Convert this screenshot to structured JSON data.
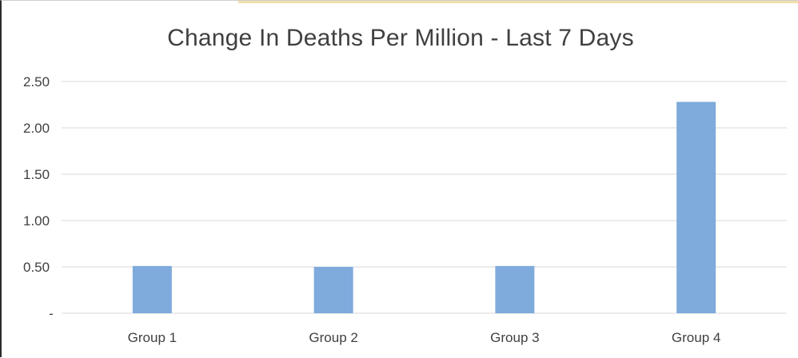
{
  "chart_data": {
    "type": "bar",
    "title": "Change In Deaths Per Million - Last 7 Days",
    "categories": [
      "Group 1",
      "Group 2",
      "Group 3",
      "Group 4"
    ],
    "values": [
      0.51,
      0.5,
      0.51,
      2.28
    ],
    "y_ticks": [
      0,
      0.5,
      1.0,
      1.5,
      2.0,
      2.5
    ],
    "y_tick_labels": [
      "-",
      "0.50",
      "1.00",
      "1.50",
      "2.00",
      "2.50"
    ],
    "ylim": [
      0,
      2.5
    ],
    "grid": true,
    "legend": "none",
    "colors": {
      "bar": "#7faadc",
      "gridline": "#d9d9d9",
      "text": "#404040",
      "accent": "#f1dfa8"
    }
  }
}
